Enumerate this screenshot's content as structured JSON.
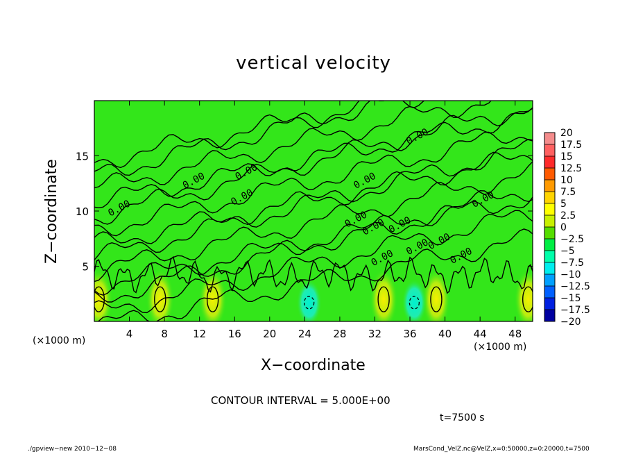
{
  "chart_data": {
    "type": "heatmap",
    "title": "vertical velocity",
    "xlabel": "X−coordinate",
    "ylabel": "Z−coordinate",
    "x_unit": "(×1000 m)",
    "xlim": [
      0,
      50
    ],
    "ylim": [
      0,
      20
    ],
    "x_ticks": [
      4,
      8,
      12,
      16,
      20,
      24,
      28,
      32,
      36,
      40,
      44,
      48
    ],
    "y_ticks": [
      5,
      10,
      15
    ],
    "contour_label": "0.00",
    "contour_interval_text": "CONTOUR INTERVAL = 5.000E+00",
    "colorbar": {
      "labels": [
        "20",
        "17.5",
        "15",
        "12.5",
        "10",
        "7.5",
        "5",
        "2.5",
        "0",
        "−2.5",
        "−5",
        "−7.5",
        "−10",
        "−12.5",
        "−15",
        "−17.5",
        "−20"
      ],
      "colors": [
        "#f48c8c",
        "#ff6060",
        "#ff2a2a",
        "#ff5a00",
        "#ff9a00",
        "#ffd400",
        "#ffff00",
        "#c8f000",
        "#55dd00",
        "#00ee44",
        "#00ffaa",
        "#00eeee",
        "#00a0ff",
        "#0060ff",
        "#0020e0",
        "#0000a0",
        "#7000b0"
      ]
    },
    "updraft_cores_x": [
      0.5,
      7.5,
      13.5,
      33,
      39,
      49.5
    ],
    "downdraft_cores_x": [
      24.5,
      36.5
    ],
    "field_color": "#33e61a"
  },
  "time_label": "t=7500 s",
  "footer": {
    "left": "./gpview−new  2010−12−08",
    "right": "MarsCond_VelZ.nc@VelZ,x=0:50000,z=0:20000,t=7500"
  }
}
